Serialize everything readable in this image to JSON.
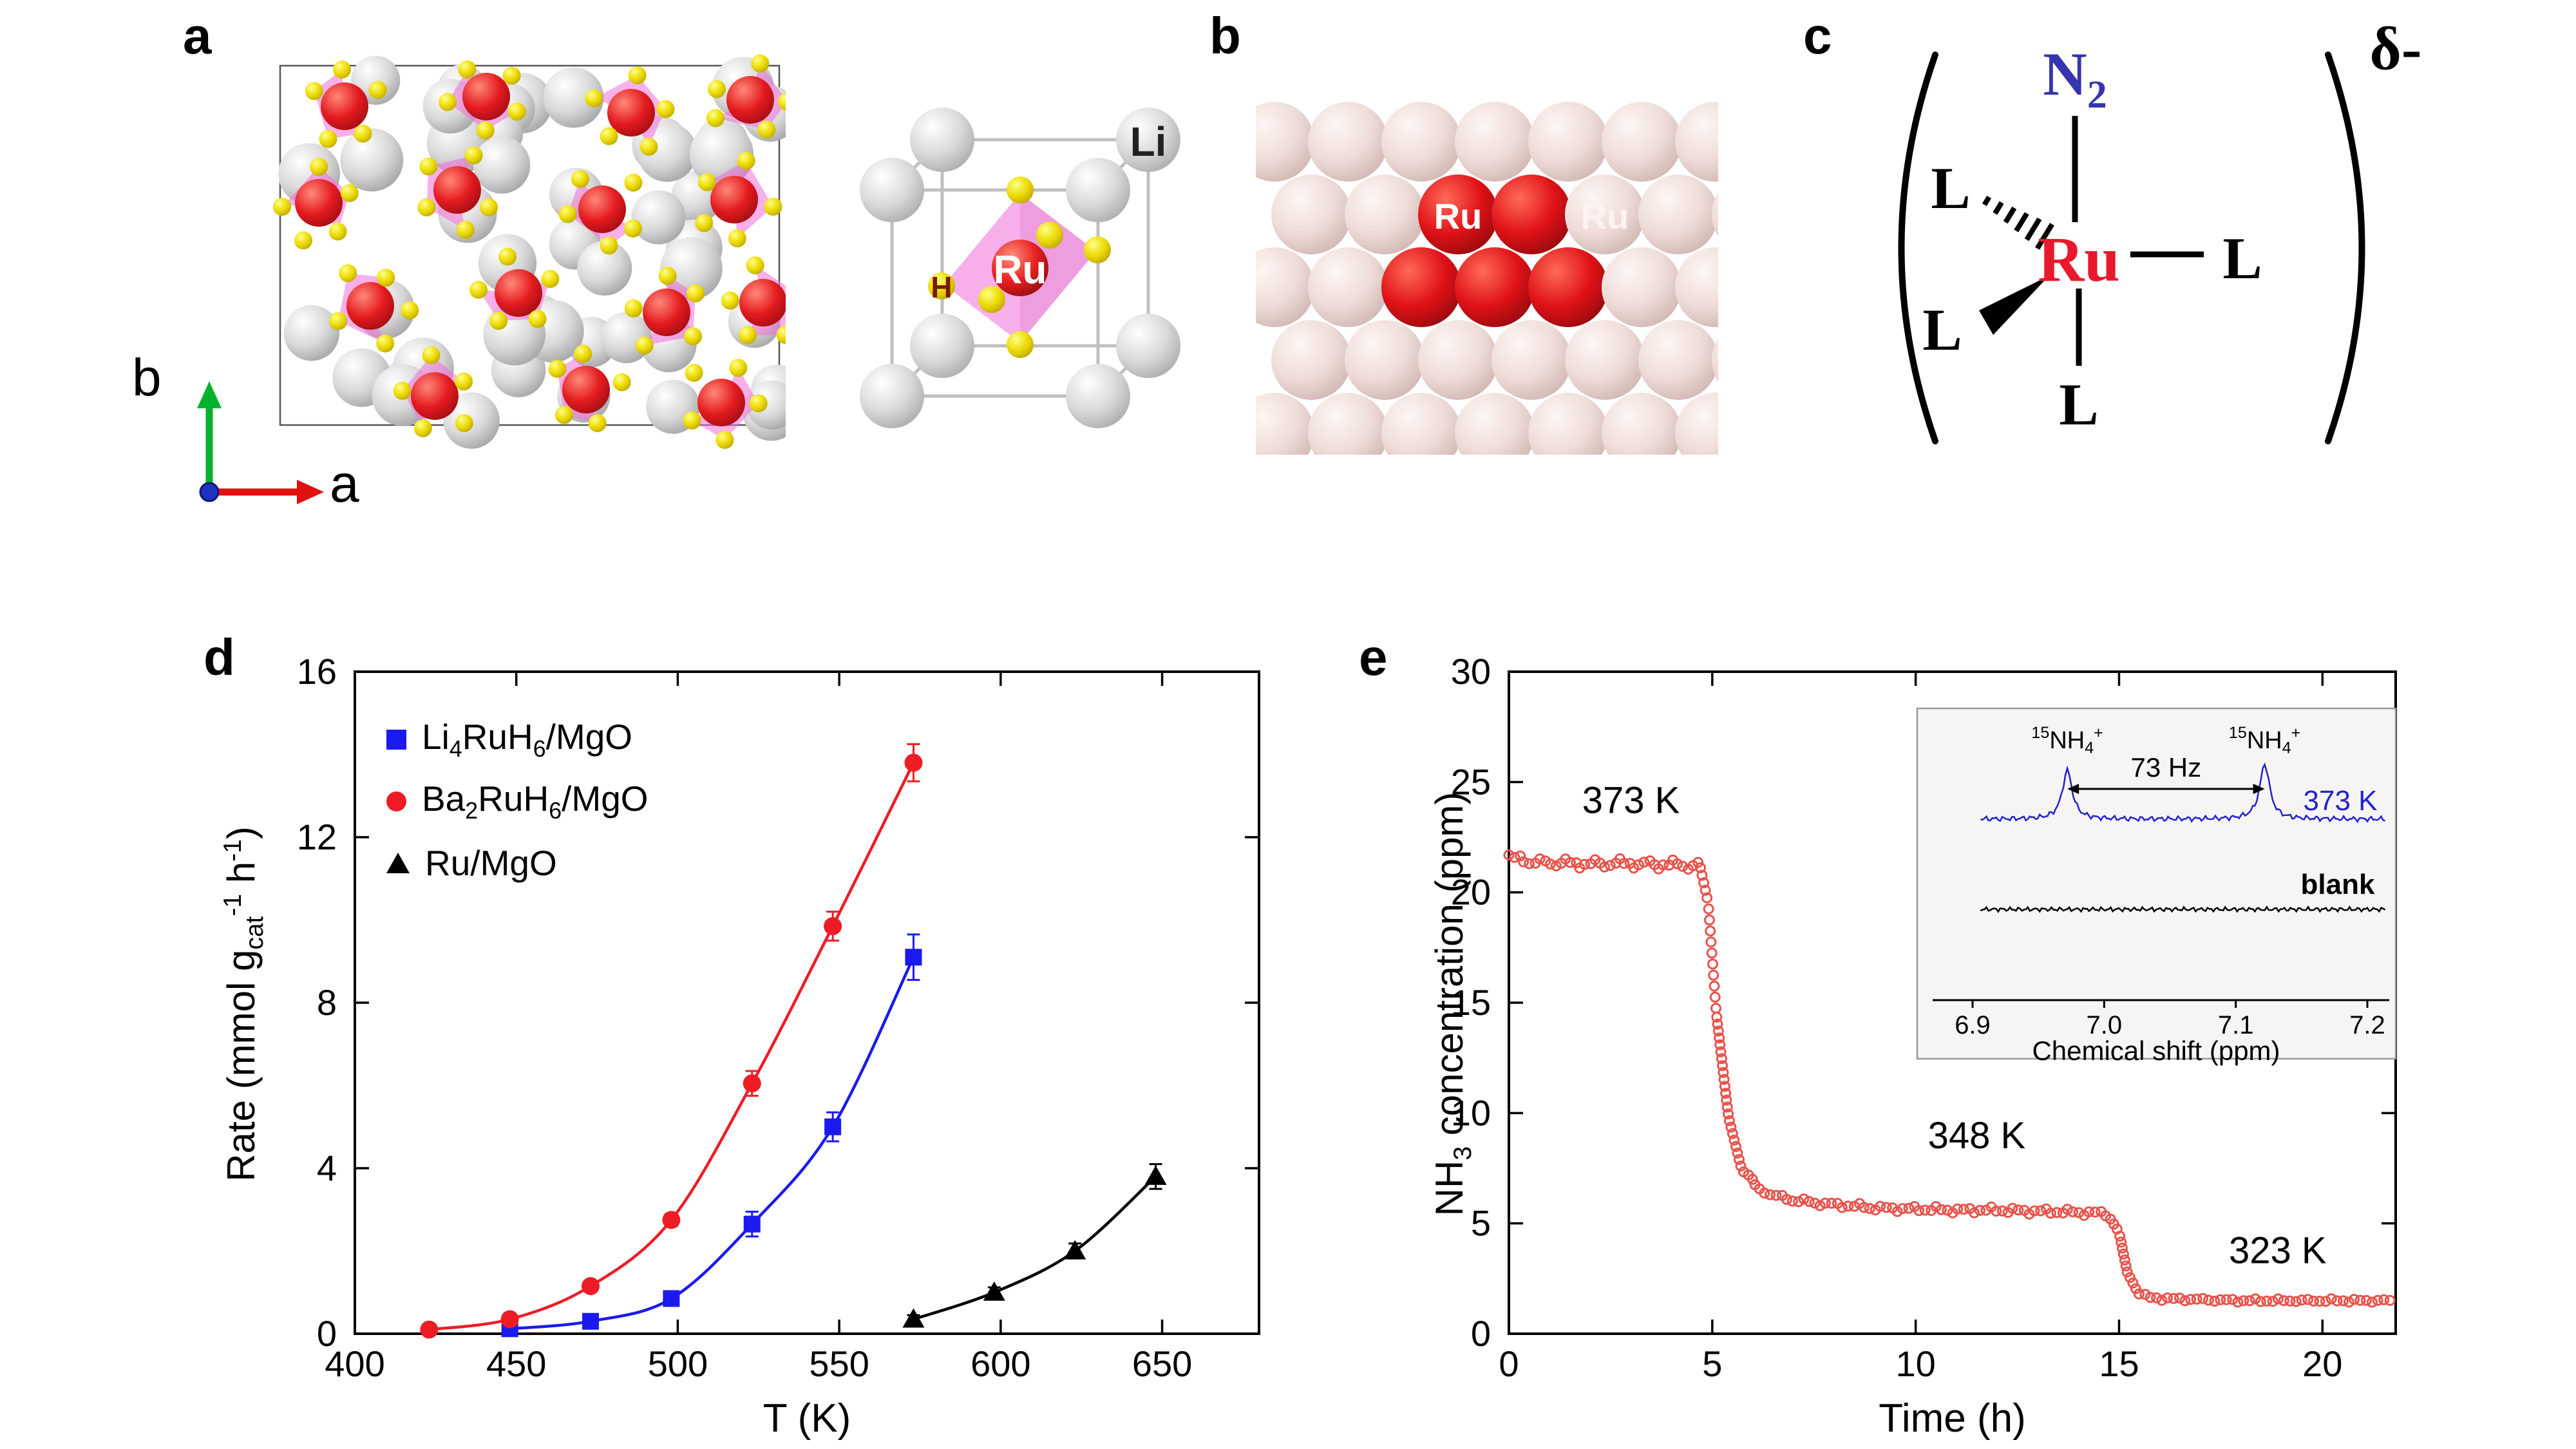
{
  "panels": {
    "a": "a",
    "b": "b",
    "c": "c",
    "d": "d",
    "e": "e"
  },
  "panel_a": {
    "axis_vertical_label": "b",
    "axis_horizontal_label": "a",
    "unit_cell": {
      "li_label": "Li",
      "ru_label": "Ru",
      "h_label": "H"
    }
  },
  "panel_b": {
    "ru_label_left": "Ru",
    "ru_label_right": "Ru"
  },
  "panel_c": {
    "n_label": "N",
    "n_subscript": "2",
    "ru_label": "Ru",
    "ligand_label": "L",
    "charge_label": "δ-"
  },
  "chart_data": [
    {
      "id": "d",
      "type": "scatter-line",
      "xlabel": "T (K)",
      "ylabel_parts": [
        [
          "Rate (mmol g",
          ""
        ],
        [
          "cat",
          "sub"
        ],
        [
          "-1",
          "sup"
        ],
        [
          " h",
          ""
        ],
        [
          "-1",
          "sup"
        ],
        [
          ")",
          ""
        ]
      ],
      "xlim": [
        400,
        680
      ],
      "ylim": [
        0,
        16
      ],
      "xticks": [
        400,
        450,
        500,
        550,
        600,
        650
      ],
      "yticks": [
        0,
        4,
        8,
        12,
        16
      ],
      "legend_position": "top-left",
      "series": [
        {
          "name": "Li4RuH6/MgO",
          "label_parts": [
            [
              "Li",
              ""
            ],
            [
              "4",
              "sub"
            ],
            [
              "RuH",
              ""
            ],
            [
              "6",
              "sub"
            ],
            [
              "/MgO",
              ""
            ]
          ],
          "marker": "square",
          "color": "#1a1aee",
          "x": [
            448,
            473,
            498,
            523,
            548,
            573
          ],
          "y": [
            0.12,
            0.3,
            0.85,
            2.65,
            5.0,
            9.1
          ],
          "err": [
            0.08,
            0.08,
            0.12,
            0.3,
            0.35,
            0.55
          ]
        },
        {
          "name": "Ba2RuH6/MgO",
          "label_parts": [
            [
              "Ba",
              ""
            ],
            [
              "2",
              "sub"
            ],
            [
              "RuH",
              ""
            ],
            [
              "6",
              "sub"
            ],
            [
              "/MgO",
              ""
            ]
          ],
          "marker": "circle",
          "color": "#ee1c25",
          "x": [
            423,
            448,
            473,
            498,
            523,
            548,
            573
          ],
          "y": [
            0.1,
            0.35,
            1.15,
            2.75,
            6.05,
            9.85,
            13.8
          ],
          "err": [
            0.06,
            0.08,
            0.1,
            0.15,
            0.3,
            0.35,
            0.45
          ]
        },
        {
          "name": "Ru/MgO",
          "label_parts": [
            [
              "Ru/MgO",
              ""
            ]
          ],
          "marker": "triangle",
          "color": "#000000",
          "x": [
            573,
            598,
            623,
            648
          ],
          "y": [
            0.35,
            1.0,
            2.0,
            3.8
          ],
          "err": [
            0.1,
            0.12,
            0.18,
            0.3
          ]
        }
      ]
    },
    {
      "id": "e",
      "type": "scatter",
      "xlabel": "Time (h)",
      "ylabel_parts": [
        [
          "NH",
          ""
        ],
        [
          "3",
          "sub"
        ],
        [
          " concentration (ppm)",
          ""
        ]
      ],
      "xlim": [
        0,
        21.8
      ],
      "ylim": [
        0,
        30
      ],
      "xticks": [
        0,
        5,
        10,
        15,
        20
      ],
      "yticks": [
        0,
        5,
        10,
        15,
        20,
        25,
        30
      ],
      "color": "#e8524a",
      "breakpoints": [
        [
          0,
          21.6
        ],
        [
          0.5,
          21.4
        ],
        [
          1,
          21.35
        ],
        [
          2,
          21.3
        ],
        [
          3,
          21.3
        ],
        [
          4,
          21.25
        ],
        [
          4.7,
          21.2
        ],
        [
          4.9,
          19.5
        ],
        [
          5.1,
          14.5
        ],
        [
          5.4,
          9.8
        ],
        [
          5.7,
          7.6
        ],
        [
          6.1,
          6.6
        ],
        [
          6.6,
          6.2
        ],
        [
          7.2,
          6.0
        ],
        [
          8,
          5.85
        ],
        [
          9,
          5.7
        ],
        [
          10,
          5.65
        ],
        [
          11,
          5.6
        ],
        [
          12,
          5.6
        ],
        [
          13,
          5.55
        ],
        [
          14,
          5.5
        ],
        [
          14.7,
          5.45
        ],
        [
          15.0,
          4.6
        ],
        [
          15.2,
          2.8
        ],
        [
          15.45,
          1.9
        ],
        [
          15.7,
          1.65
        ],
        [
          16,
          1.6
        ],
        [
          17,
          1.55
        ],
        [
          18,
          1.5
        ],
        [
          19,
          1.5
        ],
        [
          20,
          1.5
        ],
        [
          21,
          1.5
        ],
        [
          21.7,
          1.5
        ]
      ],
      "annotations": [
        {
          "text": "373 K",
          "x": 3.0,
          "y": 23.6
        },
        {
          "text": "348 K",
          "x": 11.5,
          "y": 8.4
        },
        {
          "text": "323 K",
          "x": 18.9,
          "y": 3.2
        }
      ],
      "inset": {
        "xlabel": "Chemical shift (ppm)",
        "xlim": [
          6.9,
          7.2
        ],
        "xticks": [
          "6.9",
          "7.0",
          "7.1",
          "7.2"
        ],
        "peaks_ppm": [
          6.972,
          7.122
        ],
        "coupling": "73 Hz",
        "peak_label_parts": [
          [
            "15",
            "sup"
          ],
          [
            "NH",
            ""
          ],
          [
            "4",
            "sub"
          ],
          [
            "+",
            "sup"
          ]
        ],
        "traces": [
          {
            "label": "373 K",
            "color": "#2222cc"
          },
          {
            "label": "blank",
            "color": "#000000",
            "bold": true
          }
        ]
      }
    }
  ]
}
